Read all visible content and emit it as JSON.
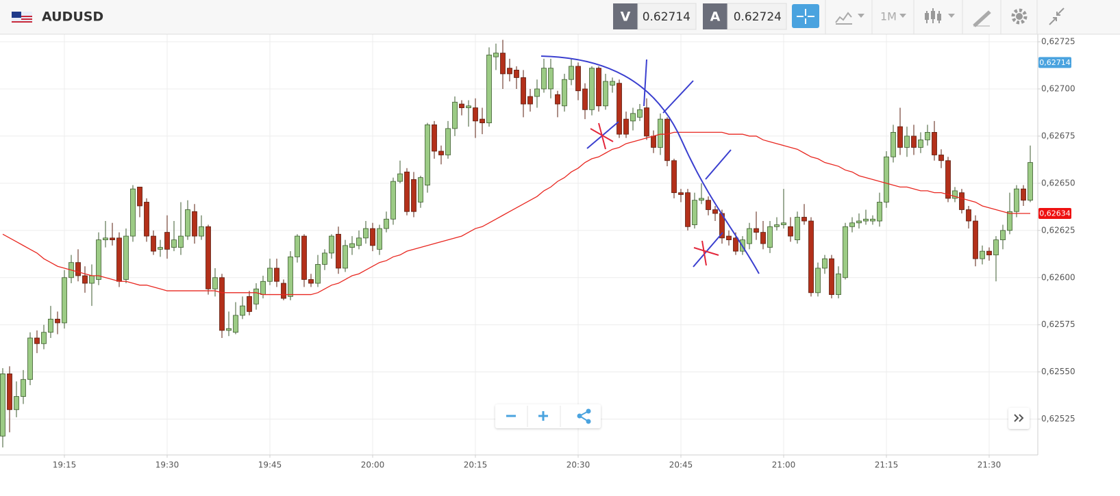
{
  "header": {
    "symbol": "AUDUSD",
    "sell_label": "V",
    "sell_price": "0.62714",
    "buy_label": "A",
    "buy_price": "0.62724",
    "timeframe": "1M"
  },
  "chart_data": {
    "type": "candlestick",
    "categories": [
      null,
      null,
      null,
      null,
      null,
      null,
      null,
      null,
      null,
      "19:15",
      null,
      null,
      null,
      null,
      null,
      null,
      null,
      null,
      null,
      null,
      null,
      null,
      null,
      null,
      "19:30",
      null,
      null,
      null,
      null,
      null,
      null,
      null,
      null,
      null,
      null,
      null,
      null,
      null,
      null,
      "19:45",
      null,
      null,
      null,
      null,
      null,
      null,
      null,
      null,
      null,
      null,
      null,
      null,
      null,
      null,
      "20:00",
      null,
      null,
      null,
      null,
      null,
      null,
      null,
      null,
      null,
      null,
      null,
      null,
      null,
      null,
      "20:15",
      null,
      null,
      null,
      null,
      null,
      null,
      null,
      null,
      null,
      null,
      null,
      null,
      null,
      null,
      "20:30",
      null,
      null,
      null,
      null,
      null,
      null,
      null,
      null,
      null,
      null,
      null,
      null,
      null,
      null,
      "20:45",
      null,
      null,
      null,
      null,
      null,
      null,
      null,
      null,
      null,
      null,
      null,
      null,
      null,
      null,
      "21:00",
      null,
      null,
      null,
      null,
      null,
      null,
      null,
      null,
      null,
      null,
      null,
      null,
      null,
      null,
      "21:15",
      null,
      null,
      null,
      null,
      null,
      null,
      null,
      null,
      null,
      null,
      null,
      null,
      null,
      null,
      "21:30",
      null,
      null,
      null,
      null,
      null,
      null
    ],
    "open": [
      0.62516,
      0.62549,
      0.6253,
      0.62537,
      0.62546,
      0.62568,
      0.62565,
      0.62571,
      0.62578,
      0.62576,
      0.626,
      0.62608,
      0.62601,
      0.62597,
      0.62599,
      0.6262,
      0.62621,
      0.62621,
      0.62599,
      0.62622,
      0.62648,
      0.6264,
      0.62622,
      0.62615,
      0.62624,
      0.62616,
      0.62616,
      0.62622,
      0.62635,
      0.62622,
      0.62627,
      0.62594,
      0.626,
      0.62572,
      0.62571,
      0.6258,
      0.6259,
      0.62586,
      0.62591,
      0.62598,
      0.62605,
      0.62597,
      0.6259,
      0.62611,
      0.62622,
      0.62599,
      0.62597,
      0.62607,
      0.62613,
      0.62623,
      0.62605,
      0.62616,
      0.62617,
      0.62621,
      0.62626,
      0.62615,
      0.62626,
      0.62631,
      0.62651,
      0.62656,
      0.62652,
      0.6264,
      0.62649,
      0.62681,
      0.62667,
      0.62665,
      0.62679,
      0.62692,
      0.6269,
      0.6269,
      0.62684,
      0.62682,
      0.62717,
      0.62719,
      0.62711,
      0.6271,
      0.62706,
      0.62696,
      0.62696,
      0.627,
      0.627,
      0.62697,
      0.62691,
      0.62705,
      0.62712,
      0.627,
      0.62689,
      0.62711,
      0.62691,
      0.62702,
      0.62703,
      0.62684,
      0.62683,
      0.62685,
      0.6269,
      0.62675,
      0.62669,
      0.62684,
      0.62662,
      0.62645,
      0.62645,
      0.62628,
      0.62641,
      0.62641,
      0.62636,
      0.62634,
      0.62622,
      0.62621,
      0.62614,
      0.62618,
      0.62626,
      0.62624,
      0.62616,
      0.62627,
      0.62628,
      0.62627,
      0.6262,
      0.62632,
      0.6263,
      0.62592,
      0.62605,
      0.6261,
      0.62591,
      0.626,
      0.62627,
      0.62629,
      0.6263,
      0.6263,
      0.6263,
      0.6264,
      0.62664,
      0.6268,
      0.62669,
      0.62675,
      0.62669,
      0.62673,
      0.62677,
      0.62665,
      0.62662,
      0.62642,
      0.62645,
      0.62636,
      0.6263,
      0.6261,
      0.62614,
      0.62612,
      0.6262,
      0.62625,
      0.62635,
      0.62647,
      0.62641
    ],
    "high": [
      0.62552,
      0.62553,
      0.62545,
      0.62551,
      0.62571,
      0.62572,
      0.62575,
      0.62585,
      0.62582,
      0.62604,
      0.62612,
      0.62615,
      0.62606,
      0.62607,
      0.62624,
      0.6263,
      0.62629,
      0.62624,
      0.62626,
      0.62649,
      0.62648,
      0.62642,
      0.62625,
      0.6262,
      0.62633,
      0.6263,
      0.6264,
      0.62641,
      0.62639,
      0.62633,
      0.62628,
      0.62605,
      0.62602,
      0.62582,
      0.62587,
      0.6259,
      0.62593,
      0.62597,
      0.62601,
      0.6261,
      0.6261,
      0.62599,
      0.62614,
      0.62623,
      0.62623,
      0.62602,
      0.62612,
      0.62615,
      0.62623,
      0.62627,
      0.6262,
      0.62622,
      0.62625,
      0.6263,
      0.62629,
      0.62628,
      0.62635,
      0.62653,
      0.62662,
      0.62658,
      0.62656,
      0.62654,
      0.62682,
      0.62683,
      0.6267,
      0.62683,
      0.62696,
      0.62694,
      0.62694,
      0.62695,
      0.6269,
      0.62722,
      0.62724,
      0.62726,
      0.62716,
      0.62712,
      0.6271,
      0.627,
      0.62705,
      0.62716,
      0.62716,
      0.62699,
      0.62708,
      0.62716,
      0.62714,
      0.62703,
      0.62712,
      0.62712,
      0.62708,
      0.62706,
      0.62705,
      0.62688,
      0.6269,
      0.62692,
      0.62695,
      0.62678,
      0.62687,
      0.62685,
      0.62663,
      0.62647,
      0.62647,
      0.62645,
      0.6265,
      0.62643,
      0.62638,
      0.62636,
      0.62625,
      0.62624,
      0.62622,
      0.62629,
      0.62635,
      0.6263,
      0.6263,
      0.62632,
      0.62647,
      0.62632,
      0.62635,
      0.62639,
      0.62632,
      0.62608,
      0.62612,
      0.62612,
      0.62606,
      0.62629,
      0.62632,
      0.62634,
      0.62636,
      0.62633,
      0.62645,
      0.62667,
      0.62681,
      0.6269,
      0.6268,
      0.62681,
      0.62677,
      0.62681,
      0.62683,
      0.62668,
      0.62664,
      0.62648,
      0.62647,
      0.62638,
      0.62633,
      0.62617,
      0.62616,
      0.62622,
      0.62628,
      0.62645,
      0.62649,
      0.62649,
      0.6267
    ],
    "low": [
      0.6251,
      0.62518,
      0.62526,
      0.62533,
      0.62543,
      0.6256,
      0.62562,
      0.62568,
      0.6257,
      0.62573,
      0.62597,
      0.62598,
      0.62592,
      0.62585,
      0.62596,
      0.62616,
      0.62617,
      0.62595,
      0.62597,
      0.62619,
      0.62632,
      0.62619,
      0.62612,
      0.62611,
      0.6261,
      0.62614,
      0.62612,
      0.6262,
      0.62618,
      0.6262,
      0.62591,
      0.6259,
      0.62568,
      0.62569,
      0.6257,
      0.62578,
      0.6258,
      0.62583,
      0.62589,
      0.62596,
      0.62595,
      0.62588,
      0.62588,
      0.62608,
      0.62595,
      0.62595,
      0.62595,
      0.62604,
      0.6261,
      0.62602,
      0.62603,
      0.62612,
      0.62615,
      0.62618,
      0.62614,
      0.62612,
      0.62624,
      0.62628,
      0.6265,
      0.62633,
      0.62632,
      0.62637,
      0.62645,
      0.62663,
      0.6266,
      0.62663,
      0.62675,
      0.62686,
      0.6268,
      0.62674,
      0.62676,
      0.6268,
      0.6271,
      0.627,
      0.62704,
      0.627,
      0.62685,
      0.62688,
      0.6269,
      0.62698,
      0.62695,
      0.62685,
      0.62688,
      0.62702,
      0.62694,
      0.62684,
      0.62686,
      0.62688,
      0.62689,
      0.62698,
      0.62674,
      0.62674,
      0.62678,
      0.62683,
      0.62673,
      0.62666,
      0.62665,
      0.62659,
      0.62642,
      0.6264,
      0.62625,
      0.62626,
      0.62639,
      0.62633,
      0.6263,
      0.62618,
      0.62617,
      0.62612,
      0.62612,
      0.62615,
      0.6262,
      0.62615,
      0.62613,
      0.62625,
      0.62626,
      0.62619,
      0.62618,
      0.62628,
      0.6259,
      0.6259,
      0.62602,
      0.62589,
      0.62589,
      0.62599,
      0.62624,
      0.62626,
      0.62628,
      0.62628,
      0.62627,
      0.62637,
      0.62661,
      0.62665,
      0.62664,
      0.62665,
      0.62666,
      0.6267,
      0.62662,
      0.62658,
      0.6264,
      0.6264,
      0.62634,
      0.62626,
      0.62606,
      0.62607,
      0.62609,
      0.62598,
      0.62615,
      0.62623,
      0.62632,
      0.62638,
      0.6264
    ],
    "close": [
      0.62549,
      0.6253,
      0.62537,
      0.62546,
      0.62568,
      0.62565,
      0.62571,
      0.62578,
      0.62576,
      0.626,
      0.62608,
      0.62601,
      0.62597,
      0.62601,
      0.6262,
      0.62621,
      0.6262,
      0.62598,
      0.62622,
      0.62647,
      0.62638,
      0.62622,
      0.62614,
      0.62616,
      0.62615,
      0.6262,
      0.62622,
      0.62636,
      0.62622,
      0.62627,
      0.62594,
      0.626,
      0.62572,
      0.62573,
      0.6258,
      0.62585,
      0.62582,
      0.62594,
      0.62598,
      0.62605,
      0.62598,
      0.62589,
      0.62611,
      0.62622,
      0.62599,
      0.62597,
      0.62607,
      0.62613,
      0.62622,
      0.62605,
      0.62617,
      0.62618,
      0.62621,
      0.62626,
      0.62617,
      0.62626,
      0.62631,
      0.62651,
      0.62655,
      0.62635,
      0.62635,
      0.62653,
      0.62681,
      0.62667,
      0.62665,
      0.62679,
      0.62693,
      0.6269,
      0.62691,
      0.62683,
      0.62682,
      0.62718,
      0.62719,
      0.62708,
      0.62708,
      0.62706,
      0.62692,
      0.62692,
      0.627,
      0.62711,
      0.62711,
      0.62692,
      0.62705,
      0.62712,
      0.62699,
      0.62689,
      0.62711,
      0.62691,
      0.62704,
      0.62704,
      0.62676,
      0.62676,
      0.62687,
      0.62689,
      0.62675,
      0.62669,
      0.62684,
      0.62662,
      0.62645,
      0.62644,
      0.62627,
      0.62641,
      0.62642,
      0.62636,
      0.62634,
      0.62621,
      0.6262,
      0.62614,
      0.6262,
      0.62626,
      0.62624,
      0.62618,
      0.62627,
      0.62628,
      0.62629,
      0.62622,
      0.62632,
      0.6263,
      0.62592,
      0.62605,
      0.6261,
      0.62591,
      0.62602,
      0.62627,
      0.62629,
      0.6263,
      0.62631,
      0.62631,
      0.6264,
      0.62664,
      0.62677,
      0.62669,
      0.62675,
      0.62669,
      0.62673,
      0.62677,
      0.62665,
      0.62662,
      0.62642,
      0.62646,
      0.62636,
      0.6263,
      0.6261,
      0.62614,
      0.62612,
      0.6262,
      0.62625,
      0.62635,
      0.62647,
      0.62641,
      0.62661
    ],
    "up_color": "#9ccb85",
    "up_edge_color": "#3b5a2c",
    "down_color": "#b3301a",
    "down_edge_color": "#5a1c0e",
    "ma": {
      "color": "#e8261f",
      "values": [
        0.62623,
        0.62621,
        0.62619,
        0.62617,
        0.62615,
        0.62613,
        0.6261,
        0.62608,
        0.62606,
        0.62605,
        0.62604,
        0.62603,
        0.62602,
        0.62601,
        0.62601,
        0.626,
        0.62599,
        0.62598,
        0.62598,
        0.62597,
        0.62596,
        0.62596,
        0.62595,
        0.62594,
        0.62593,
        0.62593,
        0.62593,
        0.62593,
        0.62593,
        0.62593,
        0.62593,
        0.62593,
        0.62592,
        0.62592,
        0.62592,
        0.62592,
        0.62592,
        0.62592,
        0.62591,
        0.62591,
        0.62591,
        0.62591,
        0.62591,
        0.62591,
        0.62591,
        0.62591,
        0.62592,
        0.62594,
        0.62596,
        0.62597,
        0.62599,
        0.62601,
        0.62602,
        0.62604,
        0.62606,
        0.62608,
        0.62609,
        0.62611,
        0.62612,
        0.62614,
        0.62615,
        0.62616,
        0.62617,
        0.62618,
        0.62619,
        0.6262,
        0.62621,
        0.62622,
        0.62624,
        0.62626,
        0.62627,
        0.62629,
        0.62631,
        0.62633,
        0.62635,
        0.62637,
        0.62639,
        0.62641,
        0.62643,
        0.62646,
        0.62648,
        0.62651,
        0.62653,
        0.62656,
        0.62658,
        0.62661,
        0.62663,
        0.62664,
        0.62666,
        0.62668,
        0.62669,
        0.62671,
        0.62672,
        0.62673,
        0.62674,
        0.62675,
        0.62676,
        0.62676,
        0.62677,
        0.62677,
        0.62677,
        0.62677,
        0.62677,
        0.62677,
        0.62677,
        0.62677,
        0.62676,
        0.62676,
        0.62676,
        0.62675,
        0.62675,
        0.62673,
        0.62672,
        0.62671,
        0.6267,
        0.62669,
        0.62668,
        0.62666,
        0.62664,
        0.62663,
        0.62661,
        0.6266,
        0.62659,
        0.62657,
        0.62656,
        0.62654,
        0.62653,
        0.62652,
        0.62651,
        0.6265,
        0.62649,
        0.62648,
        0.62648,
        0.62647,
        0.62646,
        0.62646,
        0.62645,
        0.62645,
        0.62644,
        0.62643,
        0.62642,
        0.62641,
        0.6264,
        0.62638,
        0.62637,
        0.62636,
        0.62635,
        0.62634,
        0.62634,
        0.62634,
        0.62634
      ]
    },
    "ylim": [
      0.62506,
      0.62729
    ],
    "yticks": [
      {
        "value": 0.62525,
        "label": "0,62525"
      },
      {
        "value": 0.6255,
        "label": "0,62550"
      },
      {
        "value": 0.62575,
        "label": "0,62575"
      },
      {
        "value": 0.626,
        "label": "0,62600"
      },
      {
        "value": 0.62625,
        "label": "0,62625"
      },
      {
        "value": 0.6265,
        "label": "0,62650"
      },
      {
        "value": 0.62675,
        "label": "0,62675"
      },
      {
        "value": 0.627,
        "label": "0,62700"
      },
      {
        "value": 0.62725,
        "label": "0,62725"
      }
    ],
    "price_labels": [
      {
        "value": 0.62714,
        "label": "0,62714",
        "color": "#4aa3df"
      },
      {
        "value": 0.62634,
        "label": "0,62634",
        "color": "#ee1111"
      }
    ],
    "grid": true
  }
}
